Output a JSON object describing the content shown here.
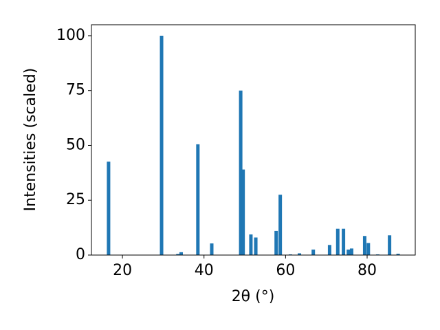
{
  "chart_data": {
    "type": "bar",
    "xlabel": "2θ (°)",
    "ylabel": "Intensities (scaled)",
    "x": [
      16.6,
      29.6,
      33.6,
      34.4,
      38.5,
      41.9,
      49.0,
      49.6,
      51.5,
      52.7,
      57.7,
      58.7,
      61.2,
      63.4,
      66.8,
      70.8,
      72.8,
      74.2,
      75.4,
      76.2,
      79.4,
      80.3,
      82.6,
      85.5,
      87.6
    ],
    "values": [
      42.6,
      100,
      0.5,
      1.3,
      50.5,
      5.3,
      75,
      39,
      9.4,
      8,
      11,
      27.5,
      0.3,
      0.8,
      2.5,
      4.6,
      12,
      12,
      2.5,
      3,
      8.7,
      5.5,
      0.3,
      9,
      0.6
    ],
    "color": "#1f77b4",
    "xlim": [
      12.4,
      91.8
    ],
    "xticks": [
      20,
      40,
      60,
      80
    ],
    "ylim": [
      0,
      105
    ],
    "yticks": [
      0,
      25,
      50,
      75,
      100
    ]
  }
}
